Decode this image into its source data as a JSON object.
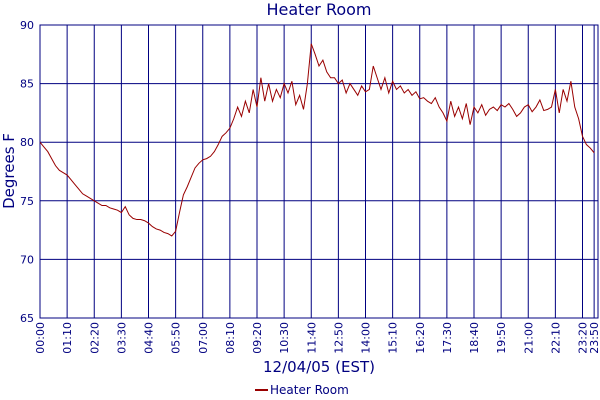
{
  "chart_data": {
    "type": "line",
    "title": "Heater Room",
    "xlabel": "12/04/05 (EST)",
    "ylabel": "Degrees F",
    "x": [
      0,
      10,
      20,
      30,
      40,
      50,
      60,
      70,
      80,
      90,
      100,
      110,
      120,
      130,
      140,
      150,
      160,
      170,
      180,
      190,
      200,
      210,
      220,
      230,
      240,
      250,
      260,
      270,
      280,
      290,
      300,
      310,
      320,
      330,
      340,
      350,
      360,
      370,
      380,
      390,
      400,
      410,
      420,
      430,
      440,
      450,
      460,
      470,
      480,
      490,
      500,
      510,
      520,
      530,
      540,
      550,
      560,
      570,
      580,
      590,
      600,
      610,
      620,
      630,
      640,
      650,
      660,
      670,
      680,
      690,
      700,
      710,
      720,
      730,
      740,
      750,
      760,
      770,
      780,
      790,
      800,
      810,
      820,
      830,
      840,
      850,
      860,
      870,
      880,
      890,
      900,
      910,
      920,
      930,
      940,
      950,
      960,
      970,
      980,
      990,
      1000,
      1010,
      1020,
      1030,
      1040,
      1050,
      1060,
      1070,
      1080,
      1090,
      1100,
      1110,
      1120,
      1130,
      1140,
      1150,
      1160,
      1170,
      1180,
      1190,
      1200,
      1210,
      1220,
      1230,
      1240,
      1250,
      1260,
      1270,
      1280,
      1290,
      1300,
      1310,
      1320,
      1330,
      1340,
      1350,
      1360,
      1370,
      1380,
      1390,
      1400,
      1410,
      1420,
      1430
    ],
    "series": [
      {
        "name": "Heater Room",
        "color": "#990000",
        "values": [
          80,
          79.6,
          79.2,
          78.6,
          78,
          77.6,
          77.4,
          77.2,
          76.8,
          76.4,
          76,
          75.6,
          75.4,
          75.2,
          75,
          74.8,
          74.6,
          74.6,
          74.4,
          74.3,
          74.2,
          74,
          74.5,
          73.8,
          73.5,
          73.4,
          73.4,
          73.3,
          73.1,
          72.8,
          72.6,
          72.5,
          72.3,
          72.2,
          72,
          72.4,
          74,
          75.5,
          76.2,
          77,
          77.8,
          78.2,
          78.5,
          78.6,
          78.8,
          79.2,
          79.8,
          80.5,
          80.8,
          81.2,
          82,
          83,
          82.2,
          83.5,
          82.5,
          84.5,
          83,
          85.5,
          83.5,
          85,
          83.5,
          84.5,
          83.8,
          85,
          84.2,
          85.2,
          83.2,
          84,
          82.8,
          85,
          88.4,
          87.5,
          86.5,
          87,
          86,
          85.5,
          85.5,
          85,
          85.3,
          84.2,
          85,
          84.5,
          84,
          84.8,
          84.3,
          84.5,
          86.5,
          85.5,
          84.5,
          85.5,
          84.2,
          85.2,
          84.5,
          84.8,
          84.2,
          84.5,
          84,
          84.3,
          83.7,
          83.8,
          83.5,
          83.3,
          83.8,
          83,
          82.5,
          81.8,
          83.5,
          82.2,
          83,
          82,
          83.3,
          81.5,
          83,
          82.5,
          83.2,
          82.3,
          82.8,
          83,
          82.7,
          83.2,
          83,
          83.3,
          82.8,
          82.2,
          82.5,
          83,
          83.2,
          82.6,
          83,
          83.6,
          82.7,
          82.8,
          83,
          84.5,
          82.5,
          84.5,
          83.5,
          85.2,
          83,
          82,
          80.5,
          79.8,
          79.5,
          79.1
        ]
      }
    ],
    "xlim": [
      0,
      1440
    ],
    "xticks": [
      {
        "value": 0,
        "label": "00:00"
      },
      {
        "value": 70,
        "label": "01:10"
      },
      {
        "value": 140,
        "label": "02:20"
      },
      {
        "value": 210,
        "label": "03:30"
      },
      {
        "value": 280,
        "label": "04:40"
      },
      {
        "value": 350,
        "label": "05:50"
      },
      {
        "value": 420,
        "label": "07:00"
      },
      {
        "value": 490,
        "label": "08:10"
      },
      {
        "value": 560,
        "label": "09:20"
      },
      {
        "value": 630,
        "label": "10:30"
      },
      {
        "value": 700,
        "label": "11:40"
      },
      {
        "value": 770,
        "label": "12:50"
      },
      {
        "value": 840,
        "label": "14:00"
      },
      {
        "value": 910,
        "label": "15:10"
      },
      {
        "value": 980,
        "label": "16:20"
      },
      {
        "value": 1050,
        "label": "17:30"
      },
      {
        "value": 1120,
        "label": "18:40"
      },
      {
        "value": 1190,
        "label": "19:50"
      },
      {
        "value": 1260,
        "label": "21:00"
      },
      {
        "value": 1330,
        "label": "22:10"
      },
      {
        "value": 1400,
        "label": "23:20"
      },
      {
        "value": 1430,
        "label": "23:50"
      }
    ],
    "ylim": [
      65,
      90
    ],
    "yticks": [
      65,
      70,
      75,
      80,
      85,
      90
    ],
    "grid": true
  }
}
